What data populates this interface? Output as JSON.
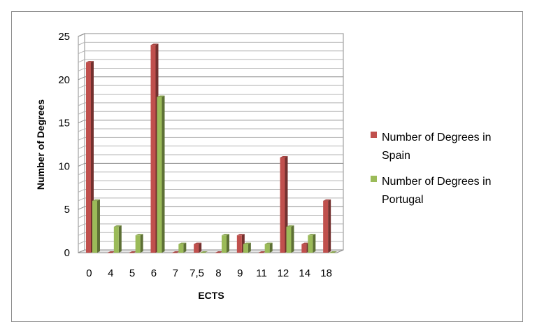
{
  "chart_data": {
    "type": "bar",
    "title": "",
    "xlabel": "ECTS",
    "ylabel": "Number of Degrees",
    "categories": [
      "0",
      "4",
      "5",
      "6",
      "7",
      "7,5",
      "8",
      "9",
      "11",
      "12",
      "14",
      "18"
    ],
    "series": [
      {
        "name": "Number of Degrees in Spain",
        "color": "#c0504d",
        "values": [
          22,
          0,
          0,
          24,
          0,
          1,
          0,
          2,
          0,
          11,
          1,
          6
        ]
      },
      {
        "name": "Number of Degrees in Portugal",
        "color": "#9bbb59",
        "values": [
          6,
          3,
          2,
          18,
          1,
          0,
          2,
          1,
          1,
          3,
          2,
          0
        ]
      }
    ],
    "ylim": [
      0,
      25
    ],
    "yticks": [
      0,
      5,
      10,
      15,
      20,
      25
    ],
    "grid": true,
    "legend_position": "right",
    "legend_lines": [
      [
        "Number of Degrees in",
        "Spain"
      ],
      [
        "Number of Degrees in",
        "Portugal"
      ]
    ]
  }
}
